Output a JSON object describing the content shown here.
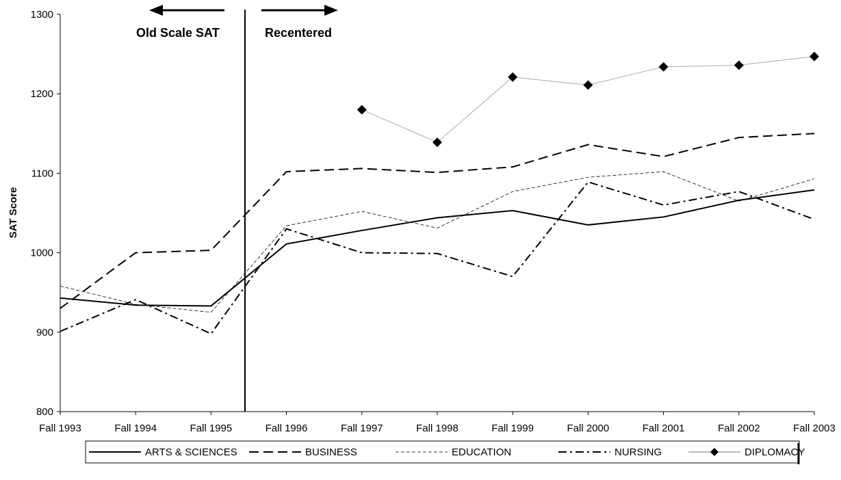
{
  "chart_data": {
    "type": "line",
    "categories": [
      "Fall 1993",
      "Fall 1994",
      "Fall 1995",
      "Fall 1996",
      "Fall 1997",
      "Fall 1998",
      "Fall 1999",
      "Fall 2000",
      "Fall 2001",
      "Fall 2002",
      "Fall 2003"
    ],
    "ylabel": "SAT Score",
    "ylim": [
      800,
      1300
    ],
    "yticks": [
      "800",
      "900",
      "1000",
      "1100",
      "1200",
      "1300"
    ],
    "grid": false,
    "legend_position": "bottom",
    "series": [
      {
        "name": "ARTS & SCIENCES",
        "style": "solid",
        "values": [
          943,
          934,
          933,
          1011,
          1028,
          1044,
          1053,
          1035,
          1045,
          1066,
          1079
        ]
      },
      {
        "name": "BUSINESS",
        "style": "dashed",
        "values": [
          930,
          1000,
          1003,
          1102,
          1106,
          1101,
          1108,
          1136,
          1121,
          1145,
          1150
        ]
      },
      {
        "name": "EDUCATION",
        "style": "thin-dashed",
        "values": [
          958,
          935,
          925,
          1034,
          1052,
          1031,
          1077,
          1095,
          1102,
          1065,
          1093
        ]
      },
      {
        "name": "NURSING",
        "style": "dash-dot",
        "values": [
          901,
          941,
          898,
          1030,
          1000,
          999,
          970,
          1089,
          1060,
          1077,
          1042
        ]
      },
      {
        "name": "DIPLOMACY",
        "style": "marker-line",
        "values": [
          null,
          null,
          null,
          null,
          1180,
          1139,
          1221,
          1211,
          1234,
          1236,
          1247
        ]
      }
    ],
    "annotations": {
      "left": "Old Scale SAT",
      "right": "Recentered"
    }
  }
}
